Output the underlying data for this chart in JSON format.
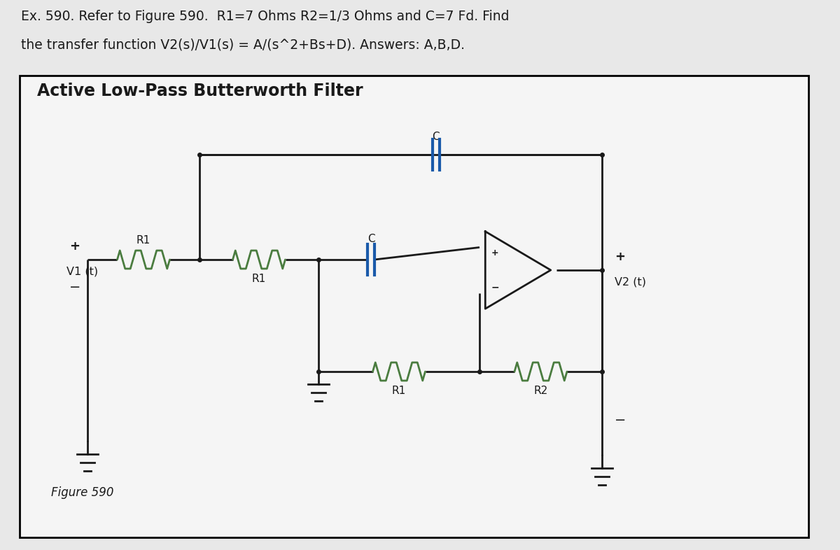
{
  "title_line1": "Ex. 590. Refer to Figure 590.  R1=7 Ohms R2=1/3 Ohms and C=7 Fd. Find",
  "title_line2": "the transfer function V2(s)/V1(s) = A/(s^2+Bs+D). Answers: A,B,D.",
  "box_title": "Active Low-Pass Butterworth Filter",
  "figure_label": "Figure 590",
  "bg_color": "#e8e8e8",
  "box_bg": "#f5f5f5",
  "wire_color": "#1a1a1a",
  "resistor_color": "#4a7c3f",
  "capacitor_color": "#1a5aaa",
  "opamp_color": "#1a1a1a",
  "text_color": "#1a1a1a",
  "title_color": "#1a1a1a"
}
